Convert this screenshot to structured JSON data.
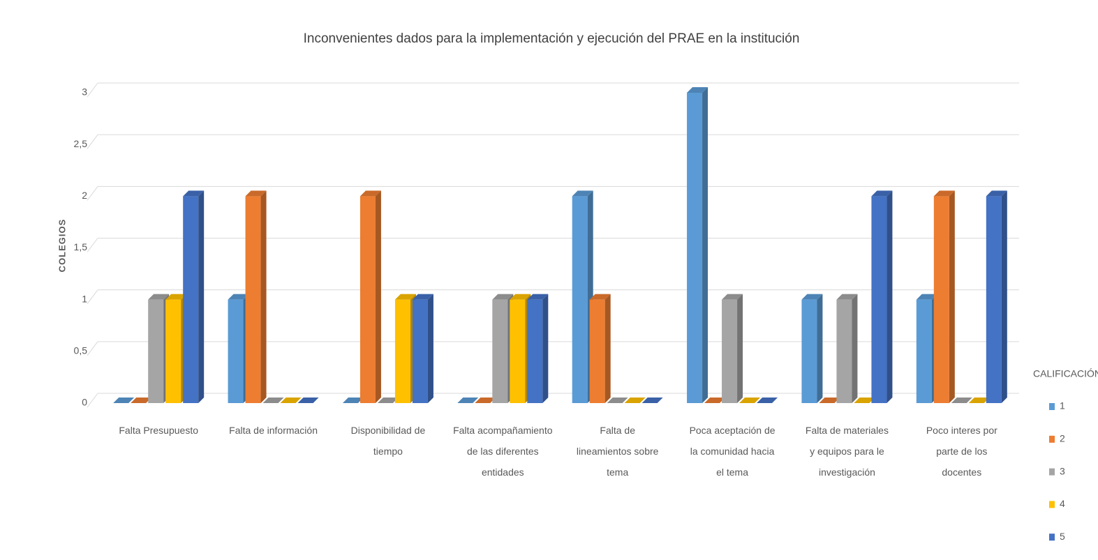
{
  "chart_data": {
    "type": "bar3d",
    "title": "Inconvenientes dados para la implementación y ejecución del PRAE en la institución",
    "y_label": "COLEGIOS",
    "legend_title": "CALIFICACIÓN",
    "legend_position": "right",
    "grid": true,
    "categories": [
      "Falta Presupuesto",
      "Falta de información",
      "Disponibilidad de tiempo",
      "Falta acompañamiento de las diferentes entidades",
      "Falta de lineamientos sobre tema",
      "Poca aceptación de la comunidad hacia el tema",
      "Falta de materiales y equipos para le investigación",
      "Poco interes por parte de los docentes"
    ],
    "series": [
      {
        "name": "1",
        "color": "#5b9bd5",
        "values": [
          0,
          1,
          0,
          0,
          2,
          3,
          1,
          1
        ]
      },
      {
        "name": "2",
        "color": "#ed7d31",
        "values": [
          0,
          2,
          2,
          0,
          1,
          0,
          0,
          2
        ]
      },
      {
        "name": "3",
        "color": "#a5a5a5",
        "values": [
          1,
          0,
          0,
          1,
          0,
          1,
          1,
          0
        ]
      },
      {
        "name": "4",
        "color": "#ffc000",
        "values": [
          1,
          0,
          1,
          1,
          0,
          0,
          0,
          0
        ]
      },
      {
        "name": "5",
        "color": "#4472c4",
        "values": [
          2,
          0,
          1,
          1,
          0,
          0,
          2,
          2
        ]
      }
    ],
    "ylim": [
      0,
      3
    ],
    "yticks": [
      0,
      {
        "value": 0.5,
        "label": "0,5"
      },
      1,
      {
        "value": 1.5,
        "label": "1,5"
      },
      2,
      {
        "value": 2.5,
        "label": "2,5"
      },
      3
    ]
  }
}
